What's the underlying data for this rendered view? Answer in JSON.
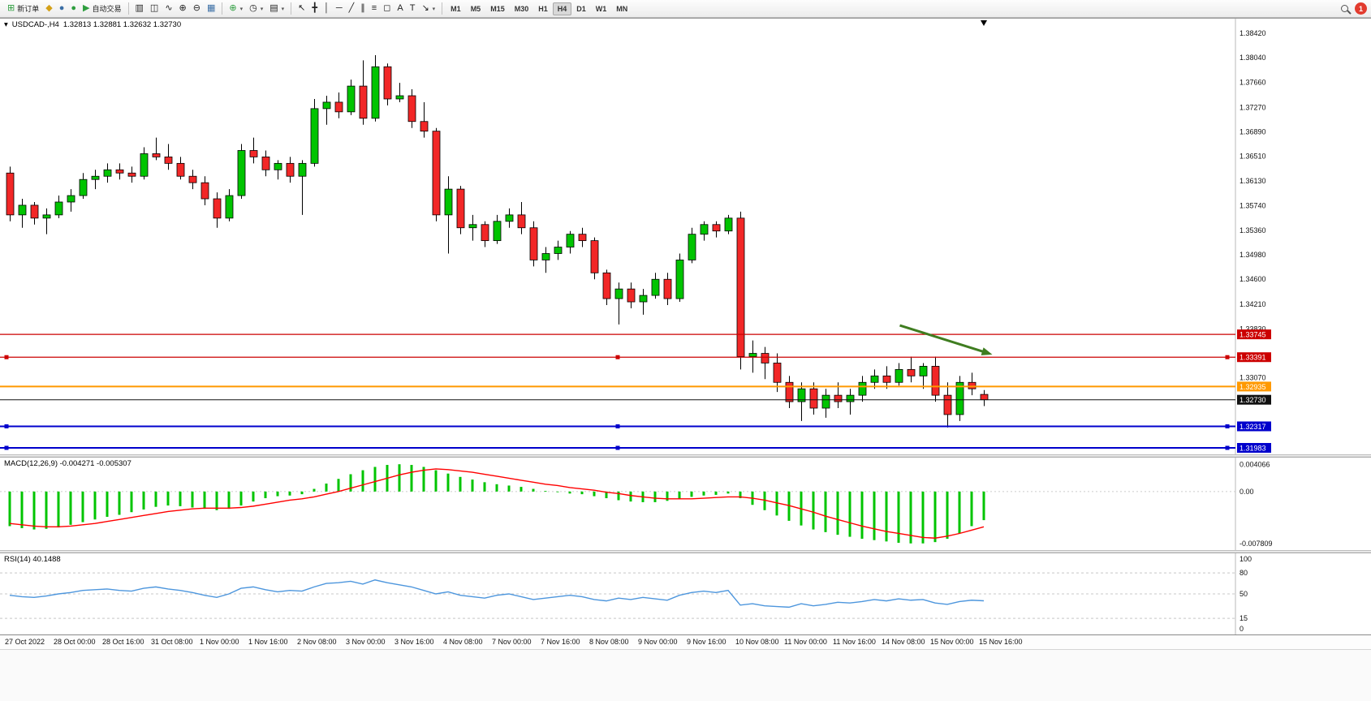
{
  "icons": {
    "collapse": "▾",
    "dropdown": "▾"
  },
  "toolbar": {
    "new_order_label": "新订单",
    "auto_trading_label": "自动交易",
    "timeframes": [
      "M1",
      "M5",
      "M15",
      "M30",
      "H1",
      "H4",
      "D1",
      "W1",
      "MN"
    ],
    "active_timeframe": "H4",
    "notification_count": "1",
    "groups": [
      {
        "items": [
          {
            "name": "new-order-button",
            "glyph": "⊞",
            "color": "#2e9e3f",
            "label": "新订单"
          },
          {
            "name": "market-watch-icon",
            "glyph": "◆",
            "color": "#d4a017"
          },
          {
            "name": "navigator-icon",
            "glyph": "●",
            "color": "#3a6ea5"
          },
          {
            "name": "terminal-icon",
            "glyph": "●",
            "color": "#2e9e3f"
          },
          {
            "name": "auto-trading-button",
            "glyph": "▶",
            "color": "#2e9e3f",
            "label": "自动交易"
          }
        ]
      },
      {
        "items": [
          {
            "name": "bar-chart-icon",
            "glyph": "▥"
          },
          {
            "name": "candlestick-chart-icon",
            "glyph": "◫"
          },
          {
            "name": "line-chart-icon",
            "glyph": "∿"
          },
          {
            "name": "zoom-in-icon",
            "glyph": "⊕"
          },
          {
            "name": "zoom-out-icon",
            "glyph": "⊖"
          },
          {
            "name": "grid-icon",
            "glyph": "▦",
            "color": "#3a6ea5"
          }
        ]
      },
      {
        "items": [
          {
            "name": "indicators-icon",
            "glyph": "⊕",
            "color": "#2e9e3f",
            "dd": true
          },
          {
            "name": "periods-icon",
            "glyph": "◷",
            "dd": true
          },
          {
            "name": "templates-icon",
            "glyph": "▤",
            "dd": true
          }
        ]
      },
      {
        "items": [
          {
            "name": "cursor-icon",
            "glyph": "↖"
          },
          {
            "name": "crosshair-icon",
            "glyph": "╋"
          },
          {
            "name": "vertical-line-icon",
            "glyph": "│"
          },
          {
            "name": "horizontal-line-icon",
            "glyph": "─"
          },
          {
            "name": "trendline-icon",
            "glyph": "╱"
          },
          {
            "name": "channel-icon",
            "glyph": "∥"
          },
          {
            "name": "fibonacci-icon",
            "glyph": "≡"
          },
          {
            "name": "shapes-icon",
            "glyph": "◻"
          },
          {
            "name": "text-icon",
            "glyph": "A"
          },
          {
            "name": "text-label-icon",
            "glyph": "T"
          },
          {
            "name": "arrows-icon",
            "glyph": "↘",
            "dd": true
          }
        ]
      }
    ]
  },
  "chart_data": [
    {
      "type": "candlestick",
      "symbol_period": "USDCAD-,H4",
      "ohlc_text": "1.32813 1.32881 1.32632 1.32730",
      "ylim": [
        1.318822,
        1.386467
      ],
      "y_ticks": [
        1.3842,
        1.3804,
        1.3766,
        1.3727,
        1.3689,
        1.3651,
        1.3613,
        1.3574,
        1.3536,
        1.3498,
        1.346,
        1.3421,
        1.3383,
        1.3345,
        1.3307,
        1.3268,
        1.323,
        1.3192
      ],
      "x_labels": [
        "27 Oct 2022",
        "28 Oct 00:00",
        "28 Oct 16:00",
        "31 Oct 08:00",
        "1 Nov 00:00",
        "1 Nov 16:00",
        "2 Nov 08:00",
        "3 Nov 00:00",
        "3 Nov 16:00",
        "4 Nov 08:00",
        "7 Nov 00:00",
        "7 Nov 16:00",
        "8 Nov 08:00",
        "9 Nov 00:00",
        "9 Nov 16:00",
        "10 Nov 08:00",
        "11 Nov 00:00",
        "11 Nov 16:00",
        "14 Nov 08:00",
        "15 Nov 00:00",
        "15 Nov 16:00"
      ],
      "x_label_every": 4,
      "colors": {
        "bull": "#00c400",
        "bear": "#f22727",
        "wick": "#000000"
      },
      "hlines": [
        {
          "price": 1.33745,
          "color": "#cc0000",
          "width": 1.3,
          "selected": false
        },
        {
          "price": 1.33391,
          "color": "#cc0000",
          "width": 1.3,
          "selected": true
        },
        {
          "price": 1.32935,
          "color": "#ff9900",
          "width": 2,
          "selected": false
        },
        {
          "price": 1.3273,
          "color": "#111111",
          "width": 1,
          "selected": false,
          "role": "current-price"
        },
        {
          "price": 1.32317,
          "color": "#0000cc",
          "width": 2,
          "selected": true
        },
        {
          "price": 1.31983,
          "color": "#0000cc",
          "width": 2,
          "selected": true
        }
      ],
      "arrow": {
        "from": {
          "bar": 73.1,
          "price": 1.33885
        },
        "to": {
          "bar": 80.7,
          "price": 1.33432
        },
        "color": "#3f7d20"
      },
      "candles": [
        [
          1.3625,
          1.3635,
          1.355,
          1.356
        ],
        [
          1.356,
          1.3585,
          1.354,
          1.3575
        ],
        [
          1.3575,
          1.358,
          1.3545,
          1.3555
        ],
        [
          1.3555,
          1.357,
          1.353,
          1.356
        ],
        [
          1.356,
          1.359,
          1.3555,
          1.358
        ],
        [
          1.358,
          1.36,
          1.3565,
          1.359
        ],
        [
          1.359,
          1.3625,
          1.3585,
          1.3615
        ],
        [
          1.3615,
          1.363,
          1.36,
          1.362
        ],
        [
          1.362,
          1.364,
          1.361,
          1.363
        ],
        [
          1.363,
          1.364,
          1.3615,
          1.3625
        ],
        [
          1.3625,
          1.3635,
          1.361,
          1.362
        ],
        [
          1.362,
          1.3665,
          1.3615,
          1.3655
        ],
        [
          1.3655,
          1.368,
          1.3645,
          1.365
        ],
        [
          1.365,
          1.367,
          1.363,
          1.364
        ],
        [
          1.364,
          1.365,
          1.3615,
          1.362
        ],
        [
          1.362,
          1.363,
          1.36,
          1.361
        ],
        [
          1.361,
          1.362,
          1.3575,
          1.3585
        ],
        [
          1.3585,
          1.3595,
          1.354,
          1.3555
        ],
        [
          1.3555,
          1.36,
          1.355,
          1.359
        ],
        [
          1.359,
          1.367,
          1.3585,
          1.366
        ],
        [
          1.366,
          1.368,
          1.364,
          1.365
        ],
        [
          1.365,
          1.366,
          1.362,
          1.363
        ],
        [
          1.363,
          1.3645,
          1.3615,
          1.364
        ],
        [
          1.364,
          1.365,
          1.361,
          1.362
        ],
        [
          1.362,
          1.3645,
          1.356,
          1.364
        ],
        [
          1.364,
          1.374,
          1.3635,
          1.3725
        ],
        [
          1.3725,
          1.3745,
          1.37,
          1.3735
        ],
        [
          1.3735,
          1.375,
          1.371,
          1.372
        ],
        [
          1.372,
          1.377,
          1.3715,
          1.376
        ],
        [
          1.376,
          1.38,
          1.37,
          1.371
        ],
        [
          1.371,
          1.3808,
          1.3705,
          1.379
        ],
        [
          1.379,
          1.3795,
          1.373,
          1.374
        ],
        [
          1.374,
          1.3765,
          1.3735,
          1.3745
        ],
        [
          1.3745,
          1.3755,
          1.3695,
          1.3705
        ],
        [
          1.3705,
          1.3735,
          1.368,
          1.369
        ],
        [
          1.369,
          1.3695,
          1.355,
          1.356
        ],
        [
          1.356,
          1.362,
          1.35,
          1.36
        ],
        [
          1.36,
          1.3605,
          1.353,
          1.354
        ],
        [
          1.354,
          1.356,
          1.352,
          1.3545
        ],
        [
          1.3545,
          1.355,
          1.351,
          1.352
        ],
        [
          1.352,
          1.356,
          1.3515,
          1.355
        ],
        [
          1.355,
          1.357,
          1.354,
          1.356
        ],
        [
          1.356,
          1.358,
          1.353,
          1.354
        ],
        [
          1.354,
          1.355,
          1.348,
          1.349
        ],
        [
          1.349,
          1.351,
          1.347,
          1.35
        ],
        [
          1.35,
          1.352,
          1.349,
          1.351
        ],
        [
          1.351,
          1.3535,
          1.35,
          1.353
        ],
        [
          1.353,
          1.354,
          1.351,
          1.352
        ],
        [
          1.352,
          1.3525,
          1.346,
          1.347
        ],
        [
          1.347,
          1.3475,
          1.342,
          1.343
        ],
        [
          1.343,
          1.3455,
          1.339,
          1.3445
        ],
        [
          1.3445,
          1.3455,
          1.3415,
          1.3425
        ],
        [
          1.3425,
          1.3445,
          1.3405,
          1.3435
        ],
        [
          1.3435,
          1.347,
          1.343,
          1.346
        ],
        [
          1.346,
          1.347,
          1.342,
          1.343
        ],
        [
          1.343,
          1.35,
          1.3425,
          1.349
        ],
        [
          1.349,
          1.354,
          1.3485,
          1.353
        ],
        [
          1.353,
          1.355,
          1.352,
          1.3545
        ],
        [
          1.3545,
          1.355,
          1.3525,
          1.3535
        ],
        [
          1.3535,
          1.356,
          1.353,
          1.3555
        ],
        [
          1.3555,
          1.3565,
          1.332,
          1.334
        ],
        [
          1.334,
          1.3365,
          1.3315,
          1.3345
        ],
        [
          1.3345,
          1.3355,
          1.3305,
          1.333
        ],
        [
          1.333,
          1.3345,
          1.3285,
          1.33
        ],
        [
          1.33,
          1.331,
          1.326,
          1.327
        ],
        [
          1.327,
          1.33,
          1.324,
          1.329
        ],
        [
          1.329,
          1.33,
          1.325,
          1.326
        ],
        [
          1.326,
          1.329,
          1.3245,
          1.328
        ],
        [
          1.328,
          1.33,
          1.326,
          1.327
        ],
        [
          1.327,
          1.329,
          1.325,
          1.328
        ],
        [
          1.328,
          1.331,
          1.327,
          1.33
        ],
        [
          1.33,
          1.332,
          1.329,
          1.331
        ],
        [
          1.331,
          1.3325,
          1.329,
          1.33
        ],
        [
          1.33,
          1.333,
          1.3295,
          1.332
        ],
        [
          1.332,
          1.334,
          1.33,
          1.331
        ],
        [
          1.331,
          1.333,
          1.329,
          1.3325
        ],
        [
          1.3325,
          1.334,
          1.327,
          1.328
        ],
        [
          1.328,
          1.33,
          1.323,
          1.325
        ],
        [
          1.325,
          1.331,
          1.324,
          1.33
        ],
        [
          1.33,
          1.3315,
          1.328,
          1.329
        ],
        [
          1.32813,
          1.32881,
          1.32632,
          1.3273
        ]
      ]
    },
    {
      "type": "histogram+line",
      "label": "MACD(12,26,9) -0.004271 -0.005307",
      "ylim": [
        -0.0088,
        0.0051
      ],
      "y_ticks": [
        {
          "v": 0.004066,
          "label": "0.004066"
        },
        {
          "v": 0,
          "label": "0.00"
        },
        {
          "v": -0.007809,
          "label": "-0.007809"
        }
      ],
      "colors": {
        "histogram": "#00c400",
        "signal": "#ff0000"
      },
      "values": [
        -0.0052,
        -0.0055,
        -0.0057,
        -0.0056,
        -0.0054,
        -0.005,
        -0.0046,
        -0.0042,
        -0.0038,
        -0.0035,
        -0.0031,
        -0.0027,
        -0.0023,
        -0.0021,
        -0.0022,
        -0.0024,
        -0.0026,
        -0.0028,
        -0.0026,
        -0.0021,
        -0.0015,
        -0.001,
        -0.0007,
        -0.0006,
        -0.0004,
        0.0004,
        0.0012,
        0.0019,
        0.0026,
        0.0032,
        0.0037,
        0.004,
        0.0041,
        0.004,
        0.0037,
        0.0032,
        0.0027,
        0.0022,
        0.0018,
        0.0014,
        0.0011,
        0.0009,
        0.0007,
        0.0004,
        0.0001,
        -0.0001,
        -0.0003,
        -0.0004,
        -0.0007,
        -0.001,
        -0.0013,
        -0.0015,
        -0.0016,
        -0.0016,
        -0.0014,
        -0.0011,
        -0.0008,
        -0.0006,
        -0.0005,
        -0.0003,
        -0.001,
        -0.002,
        -0.0028,
        -0.0036,
        -0.0044,
        -0.0051,
        -0.0057,
        -0.0061,
        -0.0065,
        -0.0068,
        -0.0071,
        -0.0073,
        -0.0075,
        -0.0077,
        -0.0078,
        -0.0078,
        -0.0076,
        -0.0071,
        -0.0063,
        -0.0052,
        -0.0043
      ],
      "signal": [
        -0.0048,
        -0.005,
        -0.0052,
        -0.0053,
        -0.0053,
        -0.0052,
        -0.005,
        -0.0048,
        -0.0045,
        -0.0042,
        -0.0039,
        -0.0036,
        -0.0033,
        -0.003,
        -0.0028,
        -0.0026,
        -0.0025,
        -0.0025,
        -0.0025,
        -0.0024,
        -0.0022,
        -0.0019,
        -0.0016,
        -0.0013,
        -0.0011,
        -0.0008,
        -0.0004,
        0.0,
        0.0005,
        0.001,
        0.0015,
        0.002,
        0.0025,
        0.0029,
        0.0032,
        0.0034,
        0.0033,
        0.0031,
        0.0029,
        0.0026,
        0.0023,
        0.002,
        0.0017,
        0.0014,
        0.0011,
        0.0009,
        0.0006,
        0.0004,
        0.0002,
        -0.0001,
        -0.0003,
        -0.0006,
        -0.0008,
        -0.001,
        -0.0011,
        -0.0011,
        -0.0011,
        -0.001,
        -0.0009,
        -0.0008,
        -0.0008,
        -0.001,
        -0.0013,
        -0.0017,
        -0.0021,
        -0.0026,
        -0.0031,
        -0.0037,
        -0.0042,
        -0.0047,
        -0.0052,
        -0.0056,
        -0.006,
        -0.0063,
        -0.0066,
        -0.0069,
        -0.007,
        -0.0067,
        -0.0063,
        -0.0058,
        -0.0053
      ]
    },
    {
      "type": "line",
      "label": "RSI(14) 40.1488",
      "ylim": [
        -8,
        108
      ],
      "levels": [
        80,
        50,
        15
      ],
      "y_ticks": [
        {
          "v": 100,
          "label": "100"
        },
        {
          "v": 80,
          "label": "80"
        },
        {
          "v": 50,
          "label": "50"
        },
        {
          "v": 15,
          "label": "15"
        },
        {
          "v": 0,
          "label": "0"
        }
      ],
      "colors": {
        "line": "#4d96dd",
        "level": "#c8c8c8"
      },
      "values": [
        48,
        46,
        45,
        47,
        50,
        52,
        55,
        56,
        57,
        55,
        54,
        58,
        60,
        57,
        55,
        52,
        48,
        45,
        50,
        58,
        60,
        56,
        53,
        55,
        54,
        60,
        65,
        66,
        68,
        64,
        70,
        66,
        63,
        60,
        55,
        50,
        53,
        48,
        46,
        44,
        48,
        50,
        46,
        42,
        44,
        46,
        48,
        46,
        42,
        40,
        44,
        42,
        45,
        43,
        41,
        48,
        52,
        54,
        52,
        55,
        34,
        36,
        33,
        32,
        31,
        36,
        33,
        35,
        38,
        37,
        39,
        42,
        40,
        43,
        41,
        42,
        37,
        35,
        39,
        41,
        40.1488
      ]
    }
  ]
}
